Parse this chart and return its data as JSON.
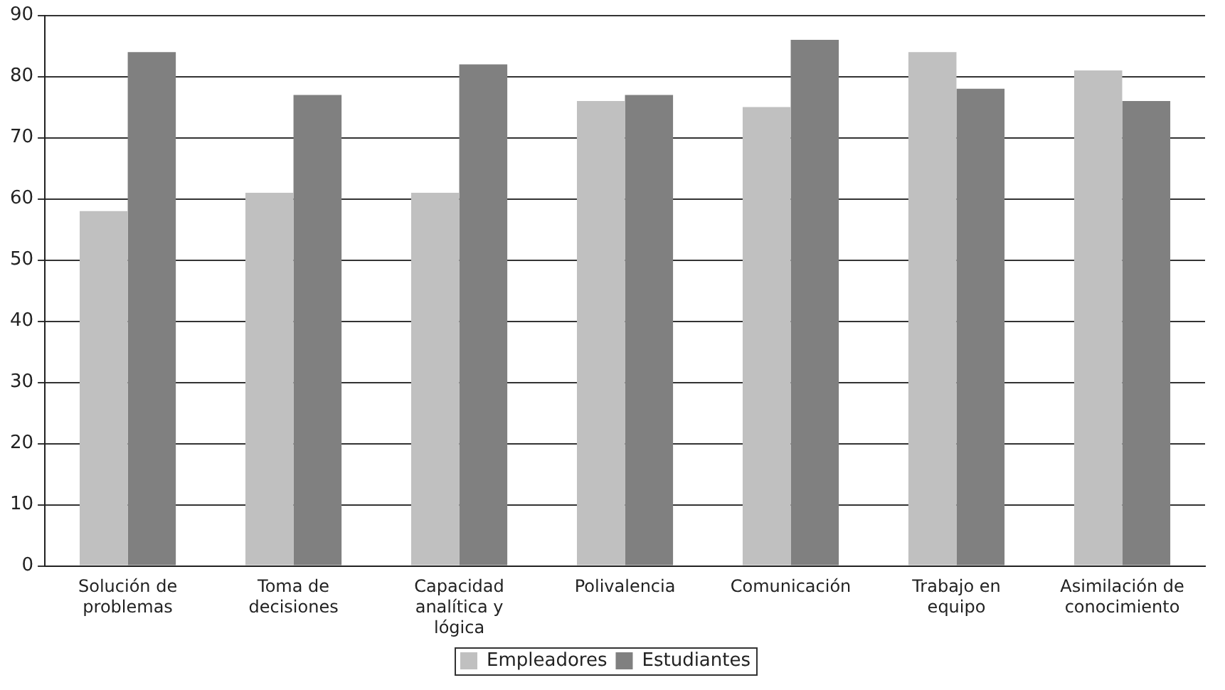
{
  "chart_data": {
    "type": "bar",
    "categories": [
      "Solución de problemas",
      "Toma de decisiones",
      "Capacidad analítica y lógica",
      "Polivalencia",
      "Comunicación",
      "Trabajo en equipo",
      "Asimilación de conocimiento"
    ],
    "series": [
      {
        "name": "Empleadores",
        "color": "#c0c0c0",
        "values": [
          58,
          61,
          61,
          76,
          75,
          84,
          81
        ]
      },
      {
        "name": "Estudiantes",
        "color": "#808080",
        "values": [
          84,
          77,
          82,
          77,
          86,
          78,
          76
        ]
      }
    ],
    "ylim": [
      0,
      90
    ],
    "yticks": [
      0,
      10,
      20,
      30,
      40,
      50,
      60,
      70,
      80,
      90
    ],
    "grid": "y",
    "legend": "bottom"
  }
}
